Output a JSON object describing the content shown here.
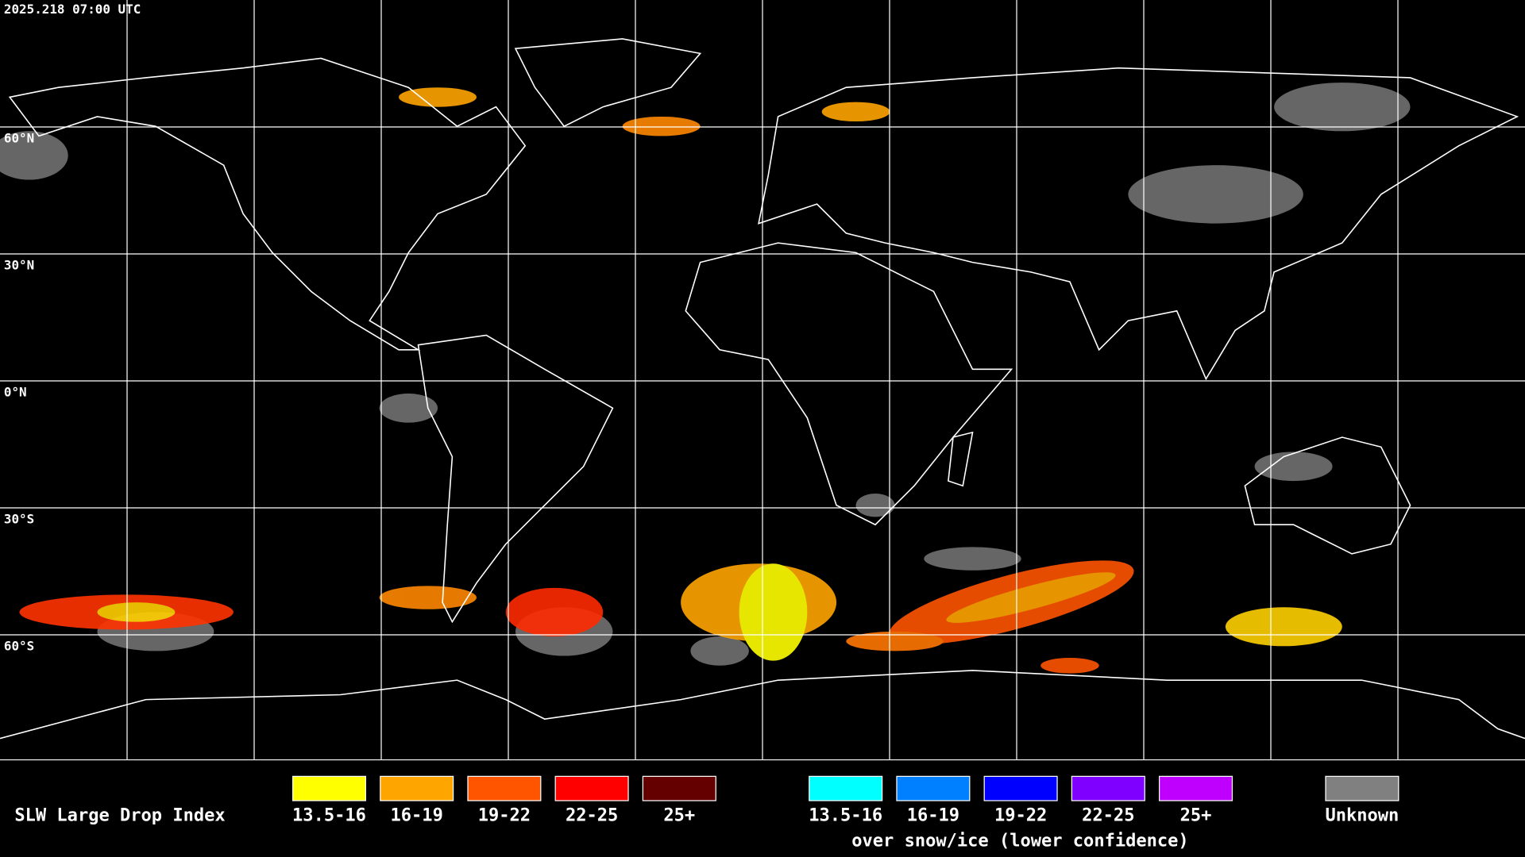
{
  "header": {
    "timestamp": "2025.218 07:00 UTC"
  },
  "map": {
    "latitude_labels": [
      "60°N",
      "30°N",
      "0°N",
      "30°S",
      "60°S"
    ]
  },
  "legend": {
    "title": "SLW Large Drop Index",
    "classes": [
      {
        "label": "13.5-16",
        "color": "#ffff00"
      },
      {
        "label": "16-19",
        "color": "#ffa500"
      },
      {
        "label": "19-22",
        "color": "#ff5500"
      },
      {
        "label": "22-25",
        "color": "#ff0000"
      },
      {
        "label": "25+",
        "color": "#640000"
      }
    ],
    "snow_classes": [
      {
        "label": "13.5-16",
        "color": "#00ffff"
      },
      {
        "label": "16-19",
        "color": "#0080ff"
      },
      {
        "label": "19-22",
        "color": "#0000ff"
      },
      {
        "label": "22-25",
        "color": "#7f00ff"
      },
      {
        "label": "25+",
        "color": "#c000ff"
      }
    ],
    "snow_note": "over snow/ice (lower confidence)",
    "unknown": {
      "label": "Unknown",
      "color": "#808080"
    }
  }
}
